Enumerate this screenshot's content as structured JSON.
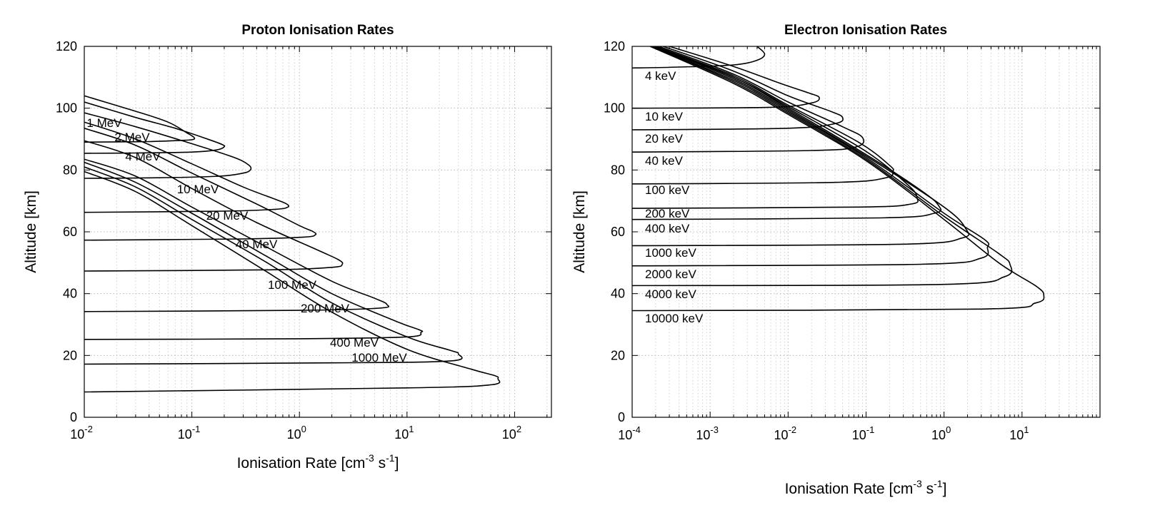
{
  "chart_data": [
    {
      "type": "line",
      "title": "Proton Ionisation Rates",
      "xlabel": "Ionisation Rate [cm",
      "xlabel_sup1": "-3",
      "xlabel_mid": " s",
      "xlabel_sup2": "-1",
      "xlabel_end": "]",
      "ylabel": "Altitude [km]",
      "xscale": "log",
      "xlim": [
        0.01,
        220
      ],
      "ylim": [
        0,
        120
      ],
      "grid": true,
      "x_ticks": [
        {
          "base": "10",
          "exp": "-2"
        },
        {
          "base": "10",
          "exp": "-1"
        },
        {
          "base": "10",
          "exp": "0"
        },
        {
          "base": "10",
          "exp": "1"
        },
        {
          "base": "10",
          "exp": "2"
        }
      ],
      "y_ticks": [
        "0",
        "20",
        "40",
        "60",
        "80",
        "100",
        "120"
      ],
      "series": [
        {
          "name": "1 MeV",
          "peak_x": 0.105,
          "peak_y": 90.5,
          "x": [
            0.01,
            0.03,
            0.06,
            0.09,
            0.105,
            0.1,
            0.07,
            0.04,
            0.02,
            0.01
          ],
          "y": [
            104,
            99,
            95.5,
            92,
            90.5,
            89.8,
            89.5,
            89.2,
            89.1,
            89
          ]
        },
        {
          "name": "2 MeV",
          "peak_x": 0.2,
          "peak_y": 87.5,
          "x": [
            0.01,
            0.03,
            0.07,
            0.14,
            0.19,
            0.2,
            0.17,
            0.1,
            0.03,
            0.01
          ],
          "y": [
            102,
            97,
            93.5,
            90,
            88.3,
            87.5,
            86.5,
            85.8,
            85.5,
            85.4
          ]
        },
        {
          "name": "4 MeV",
          "peak_x": 0.35,
          "peak_y": 80,
          "x": [
            0.01,
            0.03,
            0.1,
            0.25,
            0.34,
            0.35,
            0.3,
            0.18,
            0.05,
            0.01
          ],
          "y": [
            98.5,
            94,
            88.5,
            84,
            81.5,
            80,
            79,
            78,
            77.5,
            77.3
          ]
        },
        {
          "name": "10 MeV",
          "peak_x": 0.78,
          "peak_y": 68,
          "x": [
            0.01,
            0.03,
            0.1,
            0.3,
            0.6,
            0.76,
            0.78,
            0.6,
            0.2,
            0.01
          ],
          "y": [
            95.5,
            90,
            82,
            74.5,
            70.5,
            69,
            68,
            67.3,
            66.7,
            66.3
          ]
        },
        {
          "name": "20 MeV",
          "peak_x": 1.4,
          "peak_y": 59,
          "x": [
            0.01,
            0.03,
            0.1,
            0.4,
            1.0,
            1.35,
            1.4,
            1.1,
            0.3,
            0.01
          ],
          "y": [
            93.5,
            88,
            79,
            69,
            62,
            60,
            59,
            58.3,
            57.7,
            57.3
          ]
        },
        {
          "name": "40 MeV",
          "peak_x": 2.5,
          "peak_y": 49.5,
          "x": [
            0.01,
            0.03,
            0.1,
            0.4,
            1.5,
            2.3,
            2.5,
            2.0,
            0.5,
            0.01
          ],
          "y": [
            89.5,
            84,
            74,
            63,
            54,
            51,
            49.5,
            48.5,
            47.7,
            47.3
          ]
        },
        {
          "name": "100 MeV",
          "peak_x": 6.5,
          "peak_y": 36.5,
          "x": [
            0.01,
            0.03,
            0.1,
            0.5,
            2,
            5,
            6.5,
            5.5,
            1,
            0.01
          ],
          "y": [
            83.5,
            78,
            68,
            55,
            44,
            38.5,
            36.5,
            35.3,
            34.6,
            34.2
          ]
        },
        {
          "name": "200 MeV",
          "peak_x": 13.5,
          "peak_y": 27.5,
          "x": [
            0.01,
            0.03,
            0.1,
            0.5,
            2,
            8,
            13,
            13.5,
            10,
            1,
            0.01
          ],
          "y": [
            82.5,
            76,
            66,
            52,
            40,
            31,
            28.3,
            27.5,
            26,
            25.4,
            25.2
          ]
        },
        {
          "name": "400 MeV",
          "peak_x": 30,
          "peak_y": 20.5,
          "x": [
            0.01,
            0.03,
            0.1,
            0.5,
            2,
            10,
            25,
            30,
            25,
            2,
            0.01
          ],
          "y": [
            81,
            74.5,
            64,
            50,
            37,
            26,
            21.7,
            20.5,
            18.2,
            17.6,
            17.2
          ]
        },
        {
          "name": "1000 MeV",
          "peak_x": 70,
          "peak_y": 12.5,
          "x": [
            0.01,
            0.03,
            0.1,
            0.5,
            2,
            10,
            40,
            65,
            70,
            60,
            10,
            0.01
          ],
          "y": [
            79.5,
            73,
            62,
            47,
            34,
            22,
            15.5,
            13.5,
            12.5,
            10.5,
            9.5,
            8.2
          ]
        }
      ]
    },
    {
      "type": "line",
      "title": "Electron Ionisation Rates",
      "xlabel": "Ionisation Rate [cm",
      "xlabel_sup1": "-3",
      "xlabel_mid": " s",
      "xlabel_sup2": "-1",
      "xlabel_end": "]",
      "ylabel": "Altitude [km]",
      "xscale": "log",
      "xlim": [
        0.0001,
        100
      ],
      "ylim": [
        0,
        120
      ],
      "grid": true,
      "x_ticks": [
        {
          "base": "10",
          "exp": "-4"
        },
        {
          "base": "10",
          "exp": "-3"
        },
        {
          "base": "10",
          "exp": "-2"
        },
        {
          "base": "10",
          "exp": "-1"
        },
        {
          "base": "10",
          "exp": "0"
        },
        {
          "base": "10",
          "exp": "1"
        }
      ],
      "y_ticks": [
        "0",
        "20",
        "40",
        "60",
        "80",
        "100",
        "120"
      ],
      "series": [
        {
          "name": "4 keV",
          "peak_x": 0.005,
          "peak_y": 117.5,
          "x": [
            0.004,
            0.005,
            0.004,
            0.002,
            0.0004,
            0.0001
          ],
          "y": [
            120,
            117.5,
            115.5,
            114,
            113.3,
            113
          ]
        },
        {
          "name": "10 keV",
          "peak_x": 0.025,
          "peak_y": 103.5,
          "x": [
            0.0003,
            0.002,
            0.008,
            0.018,
            0.025,
            0.02,
            0.006,
            0.0001
          ],
          "y": [
            120,
            113.5,
            108,
            105,
            103.5,
            101.7,
            100.3,
            100
          ]
        },
        {
          "name": "20 keV",
          "peak_x": 0.05,
          "peak_y": 97,
          "x": [
            0.00025,
            0.002,
            0.01,
            0.035,
            0.05,
            0.04,
            0.01,
            0.0001
          ],
          "y": [
            120,
            112,
            104,
            99,
            97,
            95,
            93.5,
            93
          ]
        },
        {
          "name": "40 keV",
          "peak_x": 0.09,
          "peak_y": 90.5,
          "x": [
            0.00022,
            0.002,
            0.01,
            0.05,
            0.09,
            0.075,
            0.02,
            0.0001
          ],
          "y": [
            120,
            111,
            102,
            94,
            90.5,
            87.5,
            86.3,
            85.8
          ]
        },
        {
          "name": "100 keV",
          "peak_x": 0.22,
          "peak_y": 79.5,
          "x": [
            0.0002,
            0.002,
            0.01,
            0.08,
            0.2,
            0.22,
            0.18,
            0.04,
            0.0001
          ],
          "y": [
            120,
            110.5,
            101,
            89,
            81.5,
            79.5,
            77.5,
            76,
            75.5
          ]
        },
        {
          "name": "200 keV",
          "peak_x": 0.45,
          "peak_y": 71,
          "x": [
            0.0002,
            0.002,
            0.01,
            0.1,
            0.35,
            0.45,
            0.38,
            0.08,
            0.0001
          ],
          "y": [
            120,
            110,
            100.5,
            86,
            75,
            71,
            69,
            68,
            67.6
          ]
        },
        {
          "name": "400 keV",
          "peak_x": 0.85,
          "peak_y": 68.5,
          "x": [
            0.00019,
            0.002,
            0.01,
            0.1,
            0.5,
            0.85,
            0.75,
            0.15,
            0.0001
          ],
          "y": [
            120,
            110,
            100,
            85,
            73.5,
            68.5,
            66,
            64.5,
            64
          ]
        },
        {
          "name": "1000 keV",
          "peak_x": 1.9,
          "peak_y": 61,
          "x": [
            0.00019,
            0.002,
            0.01,
            0.1,
            1,
            1.9,
            1.7,
            0.3,
            0.0001
          ],
          "y": [
            120,
            109.5,
            99.5,
            84.5,
            68,
            61,
            58,
            56,
            55.5
          ]
        },
        {
          "name": "2000 keV",
          "peak_x": 3.6,
          "peak_y": 55,
          "x": [
            0.00018,
            0.002,
            0.01,
            0.1,
            1,
            3.3,
            3.6,
            3,
            0.5,
            0.0001
          ],
          "y": [
            120,
            109,
            99,
            84,
            66,
            57.5,
            55,
            51.5,
            49.5,
            49
          ]
        },
        {
          "name": "4000 keV",
          "peak_x": 7,
          "peak_y": 49.5,
          "x": [
            0.00018,
            0.002,
            0.01,
            0.1,
            1,
            5,
            7,
            6,
            1,
            0.0001
          ],
          "y": [
            120,
            108.5,
            98.5,
            83.5,
            65,
            53,
            49.5,
            45.5,
            43,
            42.6
          ]
        },
        {
          "name": "10000 keV",
          "peak_x": 19,
          "peak_y": 39.5,
          "x": [
            0.00017,
            0.002,
            0.01,
            0.1,
            1,
            5,
            15,
            19,
            15,
            3,
            0.0001
          ],
          "y": [
            120,
            108,
            98,
            83,
            64,
            50,
            42.5,
            39.5,
            37,
            35,
            34.5
          ]
        }
      ]
    }
  ]
}
